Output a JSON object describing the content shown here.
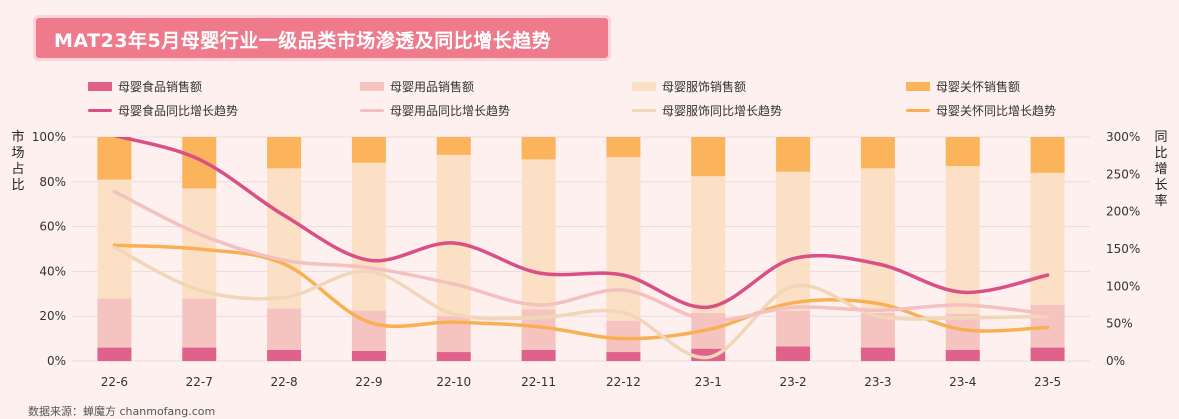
{
  "title": "MAT23年5月母婴行业一级品类市场渗透及同比增长趋势",
  "source": "数据来源：蝉魔方 chanmofang.com",
  "colors": {
    "food": "#e0618c",
    "goods": "#f6c4c0",
    "apparel": "#fbe0c6",
    "care": "#fbb45c",
    "food_line": "#d94f86",
    "goods_line": "#f4c0c0",
    "apparel_line": "#f2d6b8",
    "care_line": "#f9b054"
  },
  "chart_data": {
    "type": "bar",
    "stacked": true,
    "categories": [
      "22-6",
      "22-7",
      "22-8",
      "22-9",
      "22-10",
      "22-11",
      "22-12",
      "23-1",
      "23-2",
      "23-3",
      "23-4",
      "23-5"
    ],
    "ylabel": "市场占比",
    "y2label": "同比增长率",
    "ylim": [
      0,
      100
    ],
    "y2lim": [
      0,
      300
    ],
    "yticks": [
      "0%",
      "20%",
      "40%",
      "60%",
      "80%",
      "100%"
    ],
    "y2ticks": [
      "0%",
      "50%",
      "100%",
      "150%",
      "200%",
      "250%",
      "300%"
    ],
    "grid": true,
    "legend_position": "top",
    "series": [
      {
        "name": "母婴食品销售额",
        "kind": "bar",
        "color_key": "food",
        "values": [
          6,
          6,
          5,
          4.5,
          4,
          5,
          4,
          5.5,
          6.5,
          6,
          5,
          6
        ]
      },
      {
        "name": "母婴用品销售额",
        "kind": "bar",
        "color_key": "goods",
        "values": [
          22,
          22,
          18.5,
          18,
          16,
          18,
          14,
          16,
          16,
          15.5,
          16,
          19
        ]
      },
      {
        "name": "母婴服饰销售额",
        "kind": "bar",
        "color_key": "apparel",
        "values": [
          53,
          49,
          62.5,
          66,
          72,
          67,
          73,
          61,
          62,
          64.5,
          66,
          59
        ]
      },
      {
        "name": "母婴关怀销售额",
        "kind": "bar",
        "color_key": "care",
        "values": [
          19,
          23,
          14,
          11.5,
          8,
          10,
          9,
          17.5,
          15.5,
          14,
          13,
          16
        ]
      },
      {
        "name": "母婴食品同比增长趋势",
        "kind": "line",
        "color_key": "food_line",
        "values": [
          302,
          270,
          195,
          135,
          158,
          118,
          115,
          72,
          137,
          130,
          92,
          115
        ]
      },
      {
        "name": "母婴用品同比增长趋势",
        "kind": "line",
        "color_key": "goods_line",
        "values": [
          227,
          170,
          135,
          125,
          103,
          75,
          95,
          55,
          72,
          68,
          75,
          63
        ]
      },
      {
        "name": "母婴服饰同比增长趋势",
        "kind": "line",
        "color_key": "apparel_line",
        "values": [
          152,
          95,
          85,
          120,
          63,
          58,
          65,
          5,
          100,
          60,
          58,
          60
        ]
      },
      {
        "name": "母婴关怀同比增长趋势",
        "kind": "line",
        "color_key": "care_line",
        "values": [
          155,
          150,
          130,
          52,
          52,
          46,
          30,
          42,
          78,
          77,
          42,
          45
        ]
      }
    ]
  }
}
